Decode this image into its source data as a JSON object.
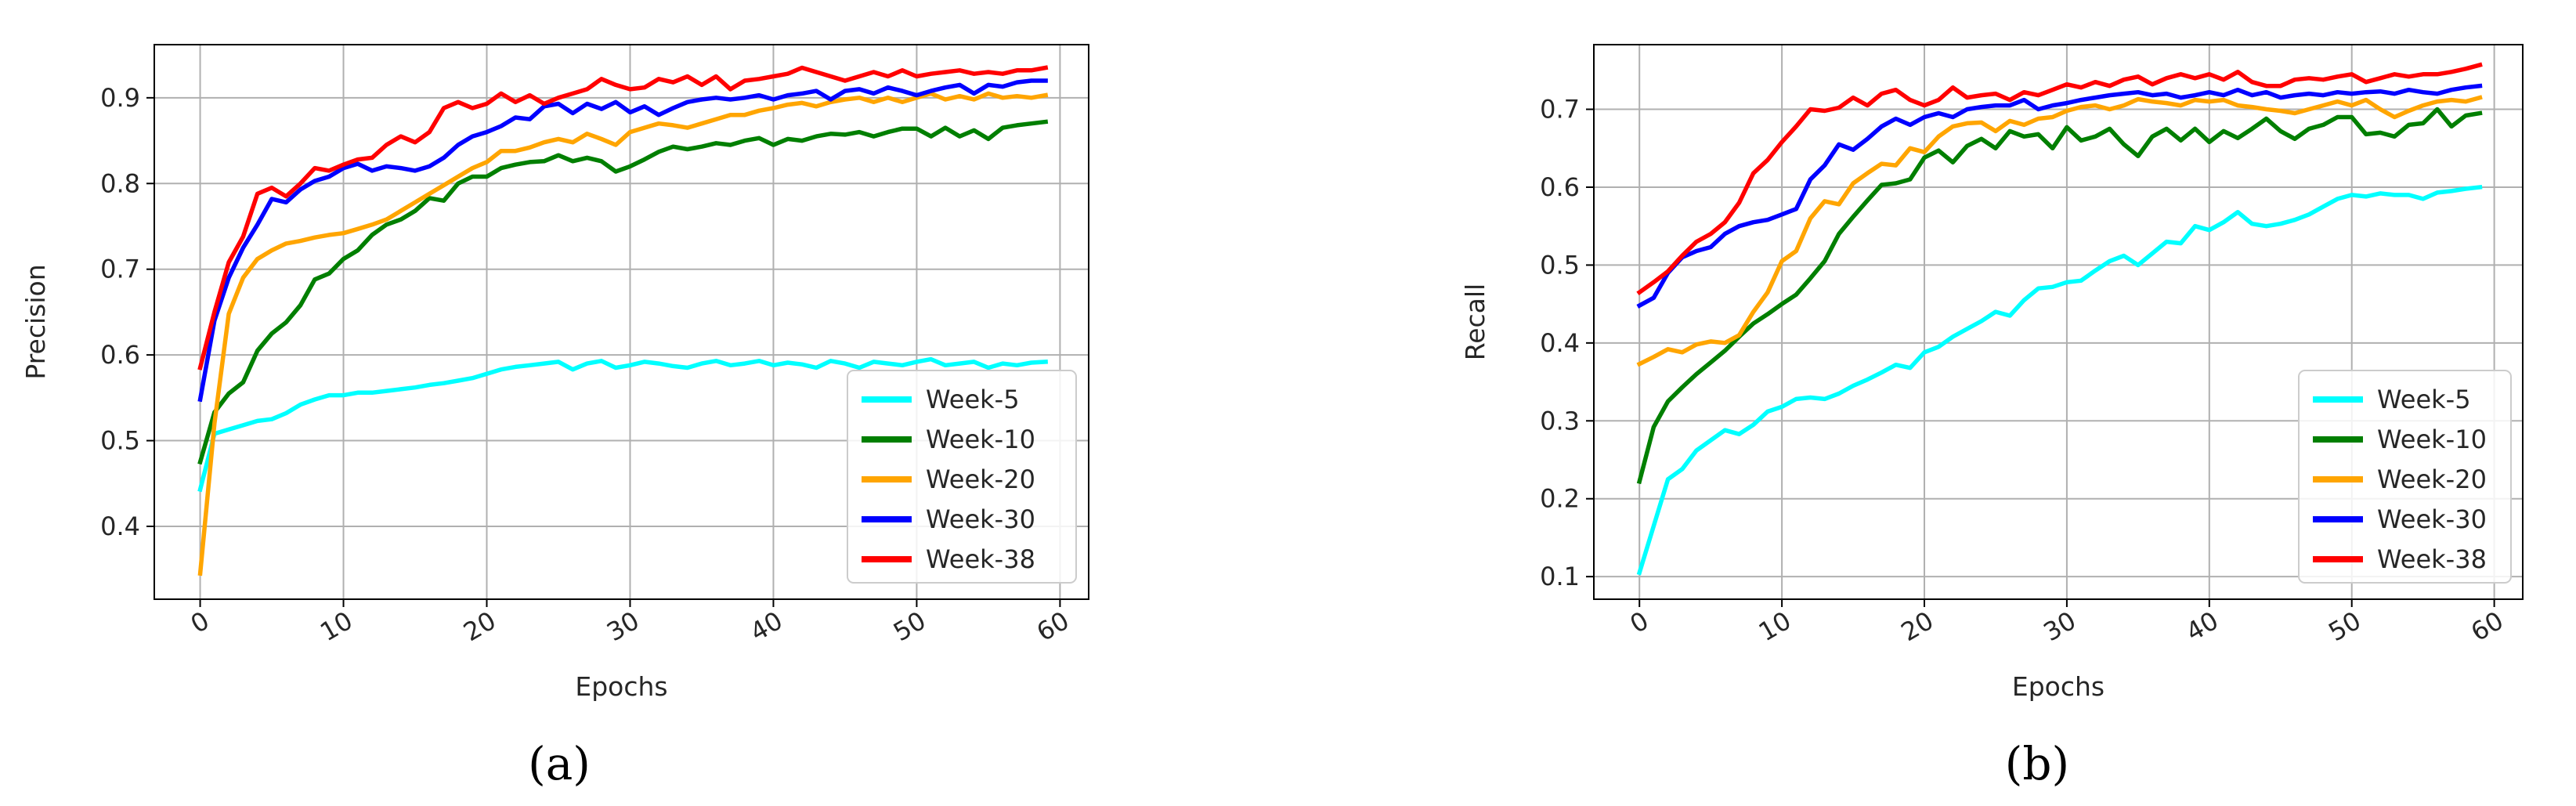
{
  "chart_data": [
    {
      "id": "a",
      "type": "line",
      "caption": "(a)",
      "title": "",
      "xlabel": "Epochs",
      "ylabel": "Precision",
      "xlim": [
        -3.2,
        62.0
      ],
      "ylim": [
        0.315,
        0.962
      ],
      "xticks": [
        0,
        10,
        20,
        30,
        40,
        50,
        60
      ],
      "yticks": [
        0.4,
        0.5,
        0.6,
        0.7,
        0.8,
        0.9
      ],
      "ytick_labels": [
        "0.4",
        "0.5",
        "0.6",
        "0.7",
        "0.8",
        "0.9"
      ],
      "grid": true,
      "legend_position": "lower-right",
      "series": [
        {
          "name": "Week-5",
          "color": "#00FFFF",
          "values": [
            0.443,
            0.508,
            0.513,
            0.518,
            0.523,
            0.525,
            0.532,
            0.542,
            0.548,
            0.553,
            0.553,
            0.556,
            0.556,
            0.558,
            0.56,
            0.562,
            0.565,
            0.567,
            0.57,
            0.573,
            0.578,
            0.583,
            0.586,
            0.588,
            0.59,
            0.592,
            0.583,
            0.59,
            0.593,
            0.585,
            0.588,
            0.592,
            0.59,
            0.587,
            0.585,
            0.59,
            0.593,
            0.588,
            0.59,
            0.593,
            0.588,
            0.591,
            0.589,
            0.585,
            0.593,
            0.59,
            0.585,
            0.592,
            0.59,
            0.588,
            0.592,
            0.595,
            0.588,
            0.59,
            0.592,
            0.585,
            0.59,
            0.588,
            0.591,
            0.592
          ]
        },
        {
          "name": "Week-10",
          "color": "#007F00",
          "values": [
            0.475,
            0.533,
            0.555,
            0.568,
            0.605,
            0.625,
            0.638,
            0.658,
            0.688,
            0.695,
            0.712,
            0.722,
            0.74,
            0.752,
            0.758,
            0.768,
            0.783,
            0.78,
            0.8,
            0.808,
            0.808,
            0.818,
            0.822,
            0.825,
            0.826,
            0.833,
            0.826,
            0.83,
            0.826,
            0.814,
            0.82,
            0.828,
            0.837,
            0.843,
            0.84,
            0.843,
            0.847,
            0.845,
            0.85,
            0.853,
            0.845,
            0.852,
            0.85,
            0.855,
            0.858,
            0.857,
            0.86,
            0.855,
            0.86,
            0.864,
            0.864,
            0.855,
            0.865,
            0.855,
            0.862,
            0.852,
            0.865,
            0.868,
            0.87,
            0.872
          ]
        },
        {
          "name": "Week-20",
          "color": "#FFA500",
          "values": [
            0.345,
            0.52,
            0.648,
            0.69,
            0.712,
            0.722,
            0.73,
            0.733,
            0.737,
            0.74,
            0.742,
            0.747,
            0.752,
            0.758,
            0.768,
            0.778,
            0.788,
            0.798,
            0.808,
            0.818,
            0.825,
            0.838,
            0.838,
            0.842,
            0.848,
            0.852,
            0.848,
            0.858,
            0.852,
            0.845,
            0.86,
            0.865,
            0.87,
            0.868,
            0.865,
            0.87,
            0.875,
            0.88,
            0.88,
            0.885,
            0.888,
            0.892,
            0.894,
            0.89,
            0.895,
            0.898,
            0.9,
            0.895,
            0.9,
            0.895,
            0.9,
            0.905,
            0.898,
            0.902,
            0.898,
            0.905,
            0.9,
            0.902,
            0.9,
            0.903
          ]
        },
        {
          "name": "Week-30",
          "color": "#0000FF",
          "values": [
            0.548,
            0.64,
            0.69,
            0.725,
            0.752,
            0.782,
            0.778,
            0.793,
            0.803,
            0.808,
            0.818,
            0.823,
            0.815,
            0.82,
            0.818,
            0.815,
            0.82,
            0.83,
            0.845,
            0.855,
            0.86,
            0.867,
            0.877,
            0.875,
            0.89,
            0.893,
            0.882,
            0.893,
            0.887,
            0.895,
            0.883,
            0.89,
            0.88,
            0.888,
            0.895,
            0.898,
            0.9,
            0.898,
            0.9,
            0.903,
            0.898,
            0.903,
            0.905,
            0.908,
            0.898,
            0.908,
            0.91,
            0.905,
            0.912,
            0.908,
            0.903,
            0.908,
            0.912,
            0.915,
            0.905,
            0.915,
            0.913,
            0.918,
            0.92,
            0.92
          ]
        },
        {
          "name": "Week-38",
          "color": "#FF0000",
          "values": [
            0.585,
            0.65,
            0.708,
            0.738,
            0.788,
            0.795,
            0.785,
            0.8,
            0.818,
            0.815,
            0.822,
            0.828,
            0.83,
            0.845,
            0.855,
            0.848,
            0.86,
            0.888,
            0.895,
            0.888,
            0.893,
            0.905,
            0.895,
            0.903,
            0.893,
            0.9,
            0.905,
            0.91,
            0.922,
            0.915,
            0.91,
            0.912,
            0.922,
            0.918,
            0.925,
            0.915,
            0.925,
            0.91,
            0.92,
            0.922,
            0.925,
            0.928,
            0.935,
            0.93,
            0.925,
            0.92,
            0.925,
            0.93,
            0.925,
            0.932,
            0.925,
            0.928,
            0.93,
            0.932,
            0.928,
            0.93,
            0.928,
            0.932,
            0.932,
            0.935
          ]
        }
      ]
    },
    {
      "id": "b",
      "type": "line",
      "caption": "(b)",
      "title": "",
      "xlabel": "Epochs",
      "ylabel": "Recall",
      "xlim": [
        -3.2,
        62.0
      ],
      "ylim": [
        0.071,
        0.783
      ],
      "xticks": [
        0,
        10,
        20,
        30,
        40,
        50,
        60
      ],
      "yticks": [
        0.1,
        0.2,
        0.3,
        0.4,
        0.5,
        0.6,
        0.7
      ],
      "ytick_labels": [
        "0.1",
        "0.2",
        "0.3",
        "0.4",
        "0.5",
        "0.6",
        "0.7"
      ],
      "grid": true,
      "legend_position": "lower-right",
      "series": [
        {
          "name": "Week-5",
          "color": "#00FFFF",
          "values": [
            0.105,
            0.165,
            0.225,
            0.238,
            0.262,
            0.275,
            0.288,
            0.283,
            0.295,
            0.312,
            0.318,
            0.328,
            0.33,
            0.328,
            0.335,
            0.345,
            0.353,
            0.362,
            0.372,
            0.368,
            0.388,
            0.395,
            0.408,
            0.418,
            0.428,
            0.44,
            0.435,
            0.455,
            0.47,
            0.472,
            0.478,
            0.48,
            0.493,
            0.505,
            0.512,
            0.5,
            0.515,
            0.53,
            0.528,
            0.55,
            0.545,
            0.555,
            0.568,
            0.553,
            0.55,
            0.553,
            0.558,
            0.565,
            0.575,
            0.585,
            0.59,
            0.588,
            0.592,
            0.59,
            0.59,
            0.585,
            0.593,
            0.595,
            0.598,
            0.6
          ]
        },
        {
          "name": "Week-10",
          "color": "#007F00",
          "values": [
            0.222,
            0.292,
            0.325,
            0.343,
            0.36,
            0.375,
            0.39,
            0.408,
            0.425,
            0.437,
            0.45,
            0.462,
            0.483,
            0.505,
            0.54,
            0.562,
            0.583,
            0.603,
            0.605,
            0.61,
            0.638,
            0.647,
            0.632,
            0.653,
            0.662,
            0.65,
            0.672,
            0.665,
            0.668,
            0.65,
            0.677,
            0.66,
            0.665,
            0.675,
            0.655,
            0.64,
            0.665,
            0.675,
            0.66,
            0.675,
            0.658,
            0.672,
            0.663,
            0.675,
            0.688,
            0.672,
            0.662,
            0.675,
            0.68,
            0.69,
            0.69,
            0.668,
            0.67,
            0.665,
            0.68,
            0.682,
            0.7,
            0.678,
            0.692,
            0.695
          ]
        },
        {
          "name": "Week-20",
          "color": "#FFA500",
          "values": [
            0.373,
            0.382,
            0.392,
            0.388,
            0.398,
            0.402,
            0.4,
            0.41,
            0.44,
            0.465,
            0.505,
            0.518,
            0.56,
            0.582,
            0.578,
            0.605,
            0.618,
            0.63,
            0.628,
            0.65,
            0.645,
            0.665,
            0.678,
            0.682,
            0.683,
            0.672,
            0.685,
            0.68,
            0.688,
            0.69,
            0.698,
            0.703,
            0.705,
            0.7,
            0.705,
            0.713,
            0.71,
            0.708,
            0.705,
            0.712,
            0.71,
            0.712,
            0.705,
            0.703,
            0.7,
            0.698,
            0.695,
            0.7,
            0.705,
            0.71,
            0.705,
            0.712,
            0.7,
            0.69,
            0.698,
            0.705,
            0.71,
            0.712,
            0.71,
            0.715
          ]
        },
        {
          "name": "Week-30",
          "color": "#0000FF",
          "values": [
            0.448,
            0.458,
            0.49,
            0.51,
            0.518,
            0.523,
            0.54,
            0.55,
            0.555,
            0.558,
            0.565,
            0.572,
            0.61,
            0.628,
            0.655,
            0.648,
            0.662,
            0.678,
            0.688,
            0.68,
            0.69,
            0.695,
            0.69,
            0.7,
            0.703,
            0.705,
            0.705,
            0.712,
            0.7,
            0.705,
            0.708,
            0.712,
            0.715,
            0.718,
            0.72,
            0.722,
            0.718,
            0.72,
            0.715,
            0.718,
            0.722,
            0.718,
            0.725,
            0.718,
            0.722,
            0.715,
            0.718,
            0.72,
            0.718,
            0.722,
            0.72,
            0.722,
            0.723,
            0.72,
            0.725,
            0.722,
            0.72,
            0.725,
            0.728,
            0.73
          ]
        },
        {
          "name": "Week-38",
          "color": "#FF0000",
          "values": [
            0.465,
            0.478,
            0.492,
            0.512,
            0.53,
            0.54,
            0.555,
            0.58,
            0.618,
            0.635,
            0.658,
            0.678,
            0.7,
            0.698,
            0.702,
            0.715,
            0.705,
            0.72,
            0.725,
            0.712,
            0.705,
            0.712,
            0.728,
            0.715,
            0.718,
            0.72,
            0.712,
            0.722,
            0.718,
            0.725,
            0.732,
            0.728,
            0.735,
            0.73,
            0.738,
            0.742,
            0.732,
            0.74,
            0.745,
            0.74,
            0.745,
            0.738,
            0.748,
            0.735,
            0.73,
            0.73,
            0.738,
            0.74,
            0.738,
            0.742,
            0.745,
            0.735,
            0.74,
            0.745,
            0.742,
            0.745,
            0.745,
            0.748,
            0.752,
            0.757
          ]
        }
      ]
    }
  ]
}
